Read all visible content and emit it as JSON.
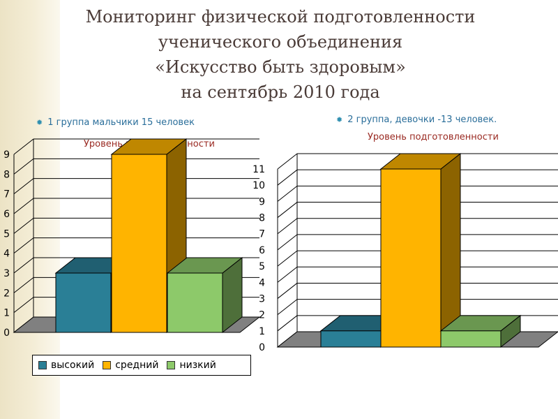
{
  "title": {
    "line1": "Мониторинг физической подготовленности",
    "line2": "ученического объединения",
    "line3": "«Искусство быть здоровым»",
    "line4": "на сентябрь  2010 года"
  },
  "left": {
    "group": "1 группа мальчики 15 человек",
    "subtitle": "Уровень подготовленности"
  },
  "right": {
    "group": "2 группа, девочки -13 человек.",
    "subtitle": "Уровень подготовленности"
  },
  "legend": [
    {
      "label": "высокий",
      "color": "#2a7f96"
    },
    {
      "label": "средний",
      "color": "#ffb400"
    },
    {
      "label": "низкий",
      "color": "#8dc96a"
    }
  ],
  "chart_data": [
    {
      "type": "bar",
      "title": "Уровень подготовленности",
      "categories": [
        "высокий",
        "средний",
        "низкий"
      ],
      "values": [
        3,
        9,
        3
      ],
      "yticks": [
        "0",
        "1",
        "2",
        "3",
        "4",
        "5",
        "6",
        "7",
        "8",
        "9"
      ],
      "ylim": [
        0,
        9
      ]
    },
    {
      "type": "bar",
      "title": "Уровень подготовленности",
      "categories": [
        "высокий",
        "средний",
        "низкий"
      ],
      "values": [
        1,
        11,
        1
      ],
      "yticks": [
        "0",
        "1",
        "2",
        "3",
        "4",
        "5",
        "6",
        "7",
        "8",
        "9",
        "10",
        "11"
      ],
      "ylim": [
        0,
        11
      ]
    }
  ]
}
